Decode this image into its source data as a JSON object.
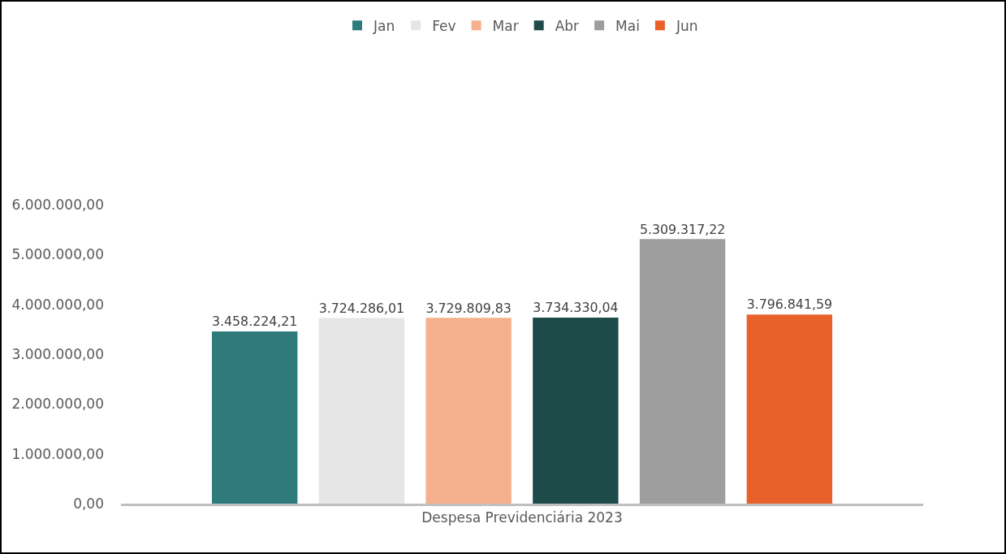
{
  "chart_data": {
    "type": "bar",
    "categories": [
      "Despesa Previdenciária 2023"
    ],
    "series": [
      {
        "name": "Jan",
        "color": "#2f7a7a",
        "values": [
          3458224.21
        ],
        "value_labels": [
          "3.458.224,21"
        ]
      },
      {
        "name": "Fev",
        "color": "#e6e6e6",
        "values": [
          3724286.01
        ],
        "value_labels": [
          "3.724.286,01"
        ]
      },
      {
        "name": "Mar",
        "color": "#f7b08e",
        "values": [
          3729809.83
        ],
        "value_labels": [
          "3.729.809,83"
        ]
      },
      {
        "name": "Abr",
        "color": "#1e4a4a",
        "values": [
          3734330.04
        ],
        "value_labels": [
          "3.734.330,04"
        ]
      },
      {
        "name": "Mai",
        "color": "#9e9e9e",
        "values": [
          5309317.22
        ],
        "value_labels": [
          "5.309.317,22"
        ]
      },
      {
        "name": "Jun",
        "color": "#e8602a",
        "values": [
          3796841.59
        ],
        "value_labels": [
          "3.796.841,59"
        ]
      }
    ],
    "ylim": [
      0,
      6000000
    ],
    "yticks": [
      {
        "value": 0,
        "label": "0,00"
      },
      {
        "value": 1000000,
        "label": "1.000.000,00"
      },
      {
        "value": 2000000,
        "label": "2.000.000,00"
      },
      {
        "value": 3000000,
        "label": "3.000.000,00"
      },
      {
        "value": 4000000,
        "label": "4.000.000,00"
      },
      {
        "value": 5000000,
        "label": "5.000.000,00"
      },
      {
        "value": 6000000,
        "label": "6.000.000,00"
      }
    ],
    "grid": false,
    "legend": "top"
  }
}
